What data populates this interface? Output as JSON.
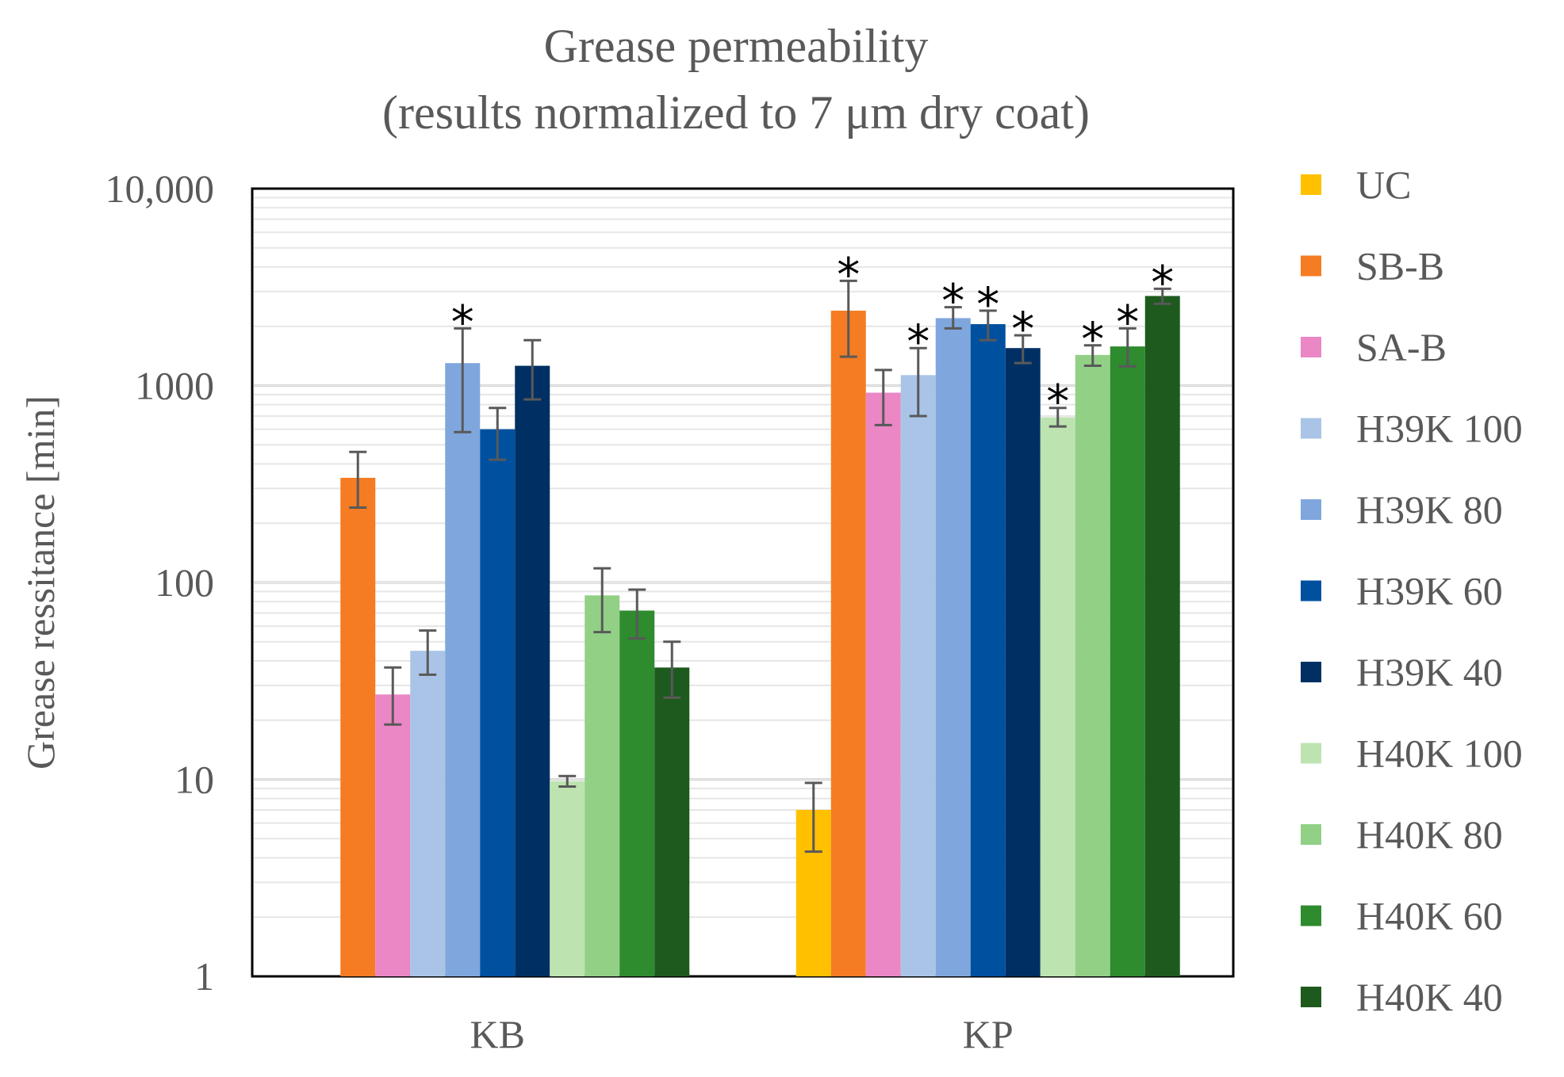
{
  "chart_data": {
    "type": "bar",
    "title": [
      "Grease permeability",
      "(results normalized to 7 μm dry coat)"
    ],
    "xlabel": "",
    "ylabel": "Grease ressitance [min]",
    "yscale": "log",
    "ylim": [
      1,
      10000
    ],
    "yticks": [
      1,
      10,
      100,
      1000,
      10000
    ],
    "ytick_labels": [
      "1",
      "10",
      "100",
      "1000",
      "10,000"
    ],
    "grid": true,
    "legend_position": "right",
    "categories": [
      "KB",
      "KP"
    ],
    "series": [
      {
        "name": "UC",
        "color": "#FFC000",
        "values": [
          null,
          7
        ],
        "err_low": [
          null,
          4.3
        ],
        "err_high": [
          null,
          9.6
        ],
        "significant": [
          false,
          false
        ]
      },
      {
        "name": "SB-B",
        "color": "#F57C23",
        "values": [
          340,
          2400
        ],
        "err_low": [
          240,
          1400
        ],
        "err_high": [
          460,
          3400
        ],
        "significant": [
          false,
          true
        ]
      },
      {
        "name": "SA-B",
        "color": "#EA87C4",
        "values": [
          27,
          920
        ],
        "err_low": [
          19,
          630
        ],
        "err_high": [
          37,
          1200
        ],
        "significant": [
          false,
          false
        ]
      },
      {
        "name": "H39K 100",
        "color": "#A9C4E7",
        "values": [
          45,
          1130
        ],
        "err_low": [
          34,
          700
        ],
        "err_high": [
          57,
          1550
        ],
        "significant": [
          false,
          true
        ]
      },
      {
        "name": "H39K 80",
        "color": "#7FA7DD",
        "values": [
          1300,
          2200
        ],
        "err_low": [
          580,
          1950
        ],
        "err_high": [
          1950,
          2500
        ],
        "significant": [
          true,
          true
        ]
      },
      {
        "name": "H39K 60",
        "color": "#0050A0",
        "values": [
          600,
          2050
        ],
        "err_low": [
          420,
          1700
        ],
        "err_high": [
          770,
          2400
        ],
        "significant": [
          false,
          true
        ]
      },
      {
        "name": "H39K 40",
        "color": "#003063",
        "values": [
          1260,
          1550
        ],
        "err_low": [
          850,
          1300
        ],
        "err_high": [
          1700,
          1800
        ],
        "significant": [
          false,
          true
        ]
      },
      {
        "name": "H40K 100",
        "color": "#BDE3B0",
        "values": [
          9.8,
          690
        ],
        "err_low": [
          9.2,
          620
        ],
        "err_high": [
          10.4,
          770
        ],
        "significant": [
          false,
          true
        ]
      },
      {
        "name": "H40K 80",
        "color": "#92D086",
        "values": [
          86,
          1430
        ],
        "err_low": [
          56,
          1260
        ],
        "err_high": [
          118,
          1600
        ],
        "significant": [
          false,
          true
        ]
      },
      {
        "name": "H40K 60",
        "color": "#2E8B2E",
        "values": [
          72,
          1580
        ],
        "err_low": [
          52,
          1250
        ],
        "err_high": [
          92,
          1950
        ],
        "significant": [
          false,
          true
        ]
      },
      {
        "name": "H40K 40",
        "color": "#1E5A1E",
        "values": [
          37,
          2850
        ],
        "err_low": [
          26,
          2600
        ],
        "err_high": [
          50,
          3100
        ],
        "significant": [
          false,
          true
        ]
      }
    ],
    "annotation_symbol": "*"
  }
}
